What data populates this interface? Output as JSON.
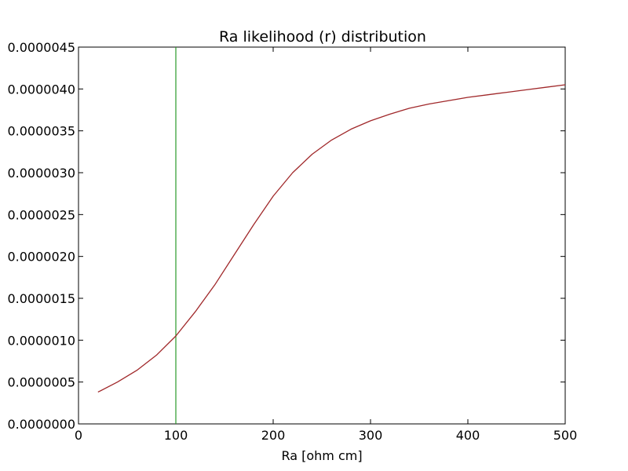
{
  "chart_data": {
    "type": "line",
    "title": "Ra likelihood (r) distribution",
    "xlabel": "Ra [ohm cm]",
    "ylabel": "",
    "xlim": [
      0,
      500
    ],
    "ylim": [
      0,
      4.5e-06
    ],
    "grid": false,
    "legend": "none",
    "x_ticks": [
      "0",
      "100",
      "200",
      "300",
      "400",
      "500"
    ],
    "y_ticks": [
      "0.0000000",
      "0.0000005",
      "0.0000010",
      "0.0000015",
      "0.0000020",
      "0.0000025",
      "0.0000030",
      "0.0000035",
      "0.0000040",
      "0.0000045"
    ],
    "series": [
      {
        "color": "#a0282a",
        "x": [
          20,
          40,
          60,
          80,
          100,
          120,
          140,
          160,
          180,
          200,
          220,
          240,
          260,
          280,
          300,
          320,
          340,
          360,
          380,
          400,
          420,
          440,
          460,
          480,
          500
        ],
        "y": [
          3.8e-07,
          5e-07,
          6.4e-07,
          8.2e-07,
          1.05e-06,
          1.34e-06,
          1.66e-06,
          2.02e-06,
          2.38e-06,
          2.72e-06,
          3e-06,
          3.22e-06,
          3.39e-06,
          3.52e-06,
          3.62e-06,
          3.7e-06,
          3.77e-06,
          3.82e-06,
          3.86e-06,
          3.9e-06,
          3.93e-06,
          3.96e-06,
          3.99e-06,
          4.02e-06,
          4.05e-06
        ]
      }
    ],
    "vline": {
      "x": 100,
      "color": "#2a9a2a"
    }
  }
}
